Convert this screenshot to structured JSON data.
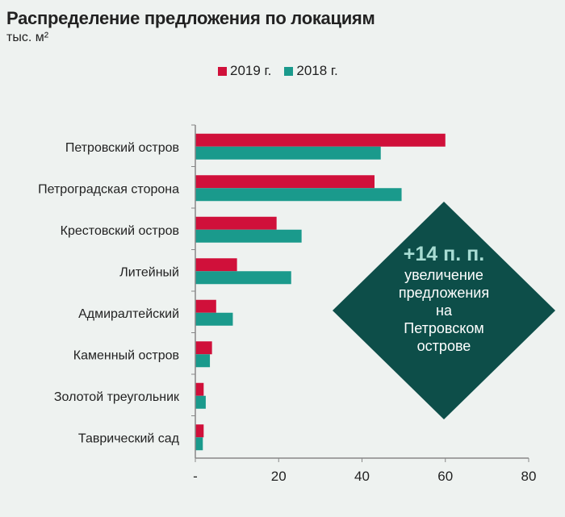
{
  "chart_data": {
    "type": "bar",
    "orientation": "horizontal",
    "title": "Распределение предложения по локациям",
    "subtitle": "тыс. м²",
    "categories": [
      "Петровский остров",
      "Петроградская сторона",
      "Крестовский остров",
      "Литейный",
      "Адмиралтейский",
      "Каменный остров",
      "Золотой треугольник",
      "Таврический сад"
    ],
    "series": [
      {
        "name": "2019 г.",
        "color": "#d0103a",
        "values": [
          60,
          43,
          19.5,
          10,
          5,
          4,
          2,
          2
        ]
      },
      {
        "name": "2018 г.",
        "color": "#1a9a8c",
        "values": [
          44.5,
          49.5,
          25.5,
          23,
          9,
          3.5,
          2.5,
          1.8
        ]
      }
    ],
    "xlim": [
      0,
      80
    ],
    "xticks": [
      {
        "value": 0,
        "label": "-"
      },
      {
        "value": 20,
        "label": "20"
      },
      {
        "value": 40,
        "label": "40"
      },
      {
        "value": 60,
        "label": "60"
      },
      {
        "value": 80,
        "label": "80"
      }
    ],
    "legend": "top-center",
    "grid": false
  },
  "callout": {
    "headline": "+14 п. п.",
    "lines": [
      "увеличение",
      "предложения",
      "на",
      "Петровском",
      "острове"
    ],
    "color": "#0d4e49"
  }
}
